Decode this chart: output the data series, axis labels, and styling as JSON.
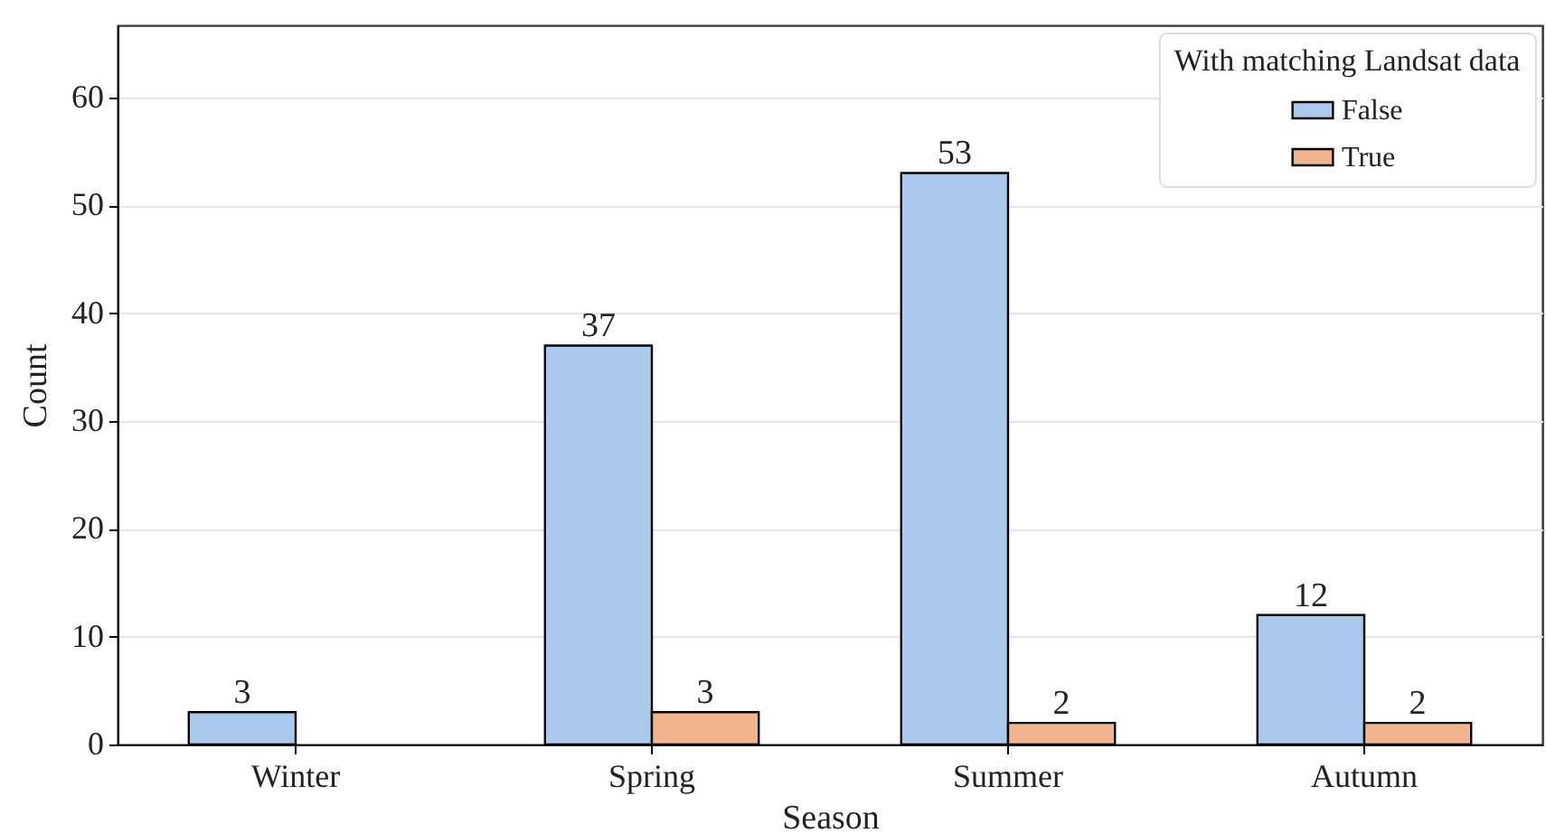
{
  "chart_data": {
    "type": "bar",
    "categories": [
      "Winter",
      "Spring",
      "Summer",
      "Autumn"
    ],
    "series": [
      {
        "name": "False",
        "color": "#abc9ec",
        "values": [
          3,
          37,
          53,
          12
        ]
      },
      {
        "name": "True",
        "color": "#f0b58f",
        "values": [
          null,
          3,
          2,
          2
        ]
      }
    ],
    "xlabel": "Season",
    "ylabel": "Count",
    "legend_title": "With matching Landsat data",
    "ylim": [
      0,
      66.7
    ],
    "yticks": [
      0,
      10,
      20,
      30,
      40,
      50,
      60
    ],
    "grid": "y",
    "legend": "top right",
    "data_labels": true
  }
}
